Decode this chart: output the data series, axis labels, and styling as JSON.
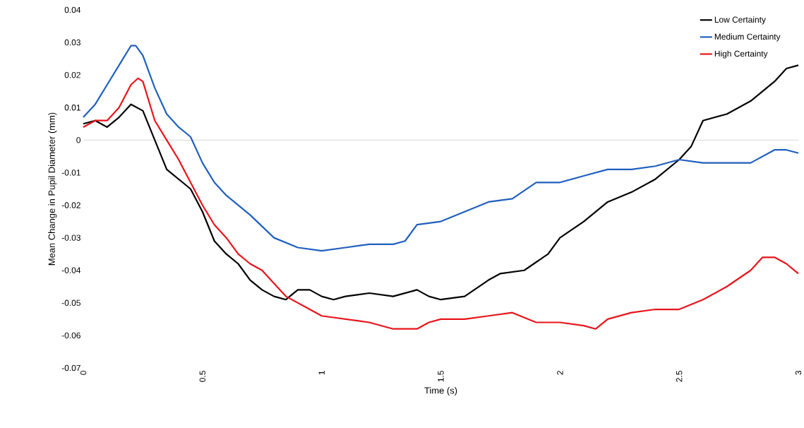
{
  "chart_data": {
    "type": "line",
    "xlabel": "Time (s)",
    "ylabel": "Mean Change in Pupil Diameter (mm)",
    "xlim": [
      0,
      3
    ],
    "ylim": [
      -0.07,
      0.04
    ],
    "xticks": [
      0,
      0.5,
      1,
      1.5,
      2,
      2.5,
      3
    ],
    "yticks": [
      -0.07,
      -0.06,
      -0.05,
      -0.04,
      -0.03,
      -0.02,
      -0.01,
      0,
      0.01,
      0.02,
      0.03,
      0.04
    ],
    "grid": false,
    "legend": "top right",
    "marker": "none",
    "line_style": "solid",
    "ref_lines": [
      {
        "axis": "y",
        "value": 0,
        "color": "#d9d9d9"
      }
    ],
    "series": [
      {
        "name": "Low Certainty",
        "color": "#000000",
        "x": [
          0,
          0.05,
          0.1,
          0.15,
          0.2,
          0.25,
          0.3,
          0.35,
          0.4,
          0.45,
          0.5,
          0.55,
          0.6,
          0.65,
          0.7,
          0.75,
          0.8,
          0.85,
          0.9,
          0.95,
          1.0,
          1.05,
          1.1,
          1.2,
          1.3,
          1.4,
          1.45,
          1.5,
          1.6,
          1.7,
          1.75,
          1.85,
          1.95,
          2.0,
          2.1,
          2.2,
          2.3,
          2.4,
          2.5,
          2.55,
          2.6,
          2.7,
          2.8,
          2.9,
          2.95,
          3.0
        ],
        "values": [
          0.005,
          0.006,
          0.004,
          0.007,
          0.011,
          0.009,
          0.0,
          -0.009,
          -0.012,
          -0.015,
          -0.022,
          -0.031,
          -0.035,
          -0.038,
          -0.043,
          -0.046,
          -0.048,
          -0.049,
          -0.046,
          -0.046,
          -0.048,
          -0.049,
          -0.048,
          -0.047,
          -0.048,
          -0.046,
          -0.048,
          -0.049,
          -0.048,
          -0.043,
          -0.041,
          -0.04,
          -0.035,
          -0.03,
          -0.025,
          -0.019,
          -0.016,
          -0.012,
          -0.006,
          -0.002,
          0.006,
          0.008,
          0.012,
          0.018,
          0.022,
          0.023
        ]
      },
      {
        "name": "Medium Certainty",
        "color": "#1f5fbf",
        "x": [
          0,
          0.05,
          0.1,
          0.15,
          0.2,
          0.22,
          0.25,
          0.3,
          0.35,
          0.4,
          0.45,
          0.5,
          0.55,
          0.6,
          0.7,
          0.8,
          0.9,
          1.0,
          1.1,
          1.2,
          1.3,
          1.35,
          1.4,
          1.5,
          1.6,
          1.7,
          1.8,
          1.9,
          2.0,
          2.1,
          2.2,
          2.3,
          2.4,
          2.5,
          2.6,
          2.7,
          2.8,
          2.9,
          2.95,
          3.0
        ],
        "values": [
          0.007,
          0.011,
          0.017,
          0.023,
          0.029,
          0.029,
          0.026,
          0.016,
          0.008,
          0.004,
          0.001,
          -0.007,
          -0.013,
          -0.017,
          -0.023,
          -0.03,
          -0.033,
          -0.034,
          -0.033,
          -0.032,
          -0.032,
          -0.031,
          -0.026,
          -0.025,
          -0.022,
          -0.019,
          -0.018,
          -0.013,
          -0.013,
          -0.011,
          -0.009,
          -0.009,
          -0.008,
          -0.006,
          -0.007,
          -0.007,
          -0.007,
          -0.003,
          -0.003,
          -0.004
        ]
      },
      {
        "name": "High Certainty",
        "color": "#e8141b",
        "x": [
          0,
          0.05,
          0.1,
          0.15,
          0.2,
          0.23,
          0.25,
          0.3,
          0.35,
          0.4,
          0.45,
          0.5,
          0.55,
          0.6,
          0.65,
          0.7,
          0.75,
          0.8,
          0.85,
          0.9,
          0.95,
          1.0,
          1.1,
          1.2,
          1.3,
          1.4,
          1.45,
          1.5,
          1.6,
          1.7,
          1.8,
          1.9,
          2.0,
          2.1,
          2.15,
          2.2,
          2.3,
          2.4,
          2.5,
          2.6,
          2.7,
          2.8,
          2.85,
          2.9,
          2.95,
          3.0
        ],
        "values": [
          0.004,
          0.006,
          0.006,
          0.01,
          0.017,
          0.019,
          0.018,
          0.006,
          0.0,
          -0.006,
          -0.013,
          -0.02,
          -0.026,
          -0.03,
          -0.035,
          -0.038,
          -0.04,
          -0.044,
          -0.048,
          -0.05,
          -0.052,
          -0.054,
          -0.055,
          -0.056,
          -0.058,
          -0.058,
          -0.056,
          -0.055,
          -0.055,
          -0.054,
          -0.053,
          -0.056,
          -0.056,
          -0.057,
          -0.058,
          -0.055,
          -0.053,
          -0.052,
          -0.052,
          -0.049,
          -0.045,
          -0.04,
          -0.036,
          -0.036,
          -0.038,
          -0.041
        ]
      }
    ]
  }
}
